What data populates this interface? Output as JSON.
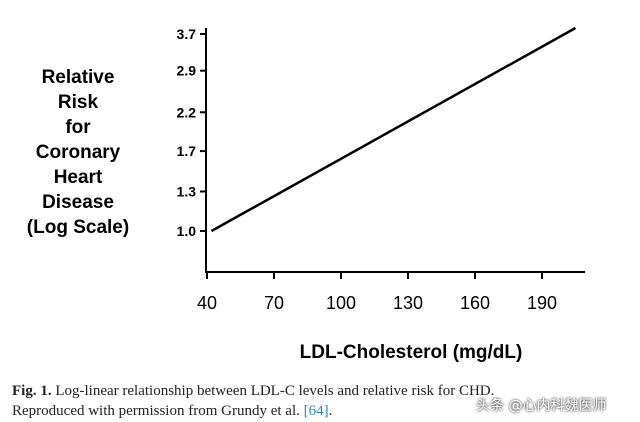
{
  "chart_data": {
    "type": "line",
    "ylabel_lines": [
      "Relative",
      "Risk",
      "for",
      "Coronary",
      "Heart",
      "Disease",
      "(Log Scale)"
    ],
    "xlabel": "LDL-Cholesterol (mg/dL)",
    "y_scale": "log",
    "y_ticks": [
      "1.0",
      "1.3",
      "1.7",
      "2.2",
      "2.9",
      "3.7"
    ],
    "x_ticks": [
      "40",
      "70",
      "100",
      "130",
      "160",
      "190"
    ],
    "xlim": [
      40,
      205
    ],
    "series": [
      {
        "x": [
          42,
          205
        ],
        "y": [
          1.0,
          3.85
        ]
      }
    ],
    "grid": false
  },
  "caption": {
    "label": "Fig. 1.",
    "text_1": "Log-linear relationship between LDL-C levels and relative risk for CHD.",
    "text_2": "Reproduced with permission from Grundy et al.",
    "ref": "[64]",
    "end": "."
  },
  "watermark": "头条 @心内科魏医师"
}
